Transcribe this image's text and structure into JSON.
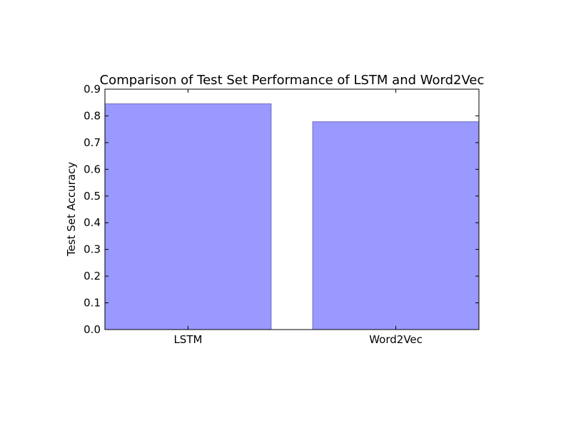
{
  "chart_data": {
    "type": "bar",
    "title": "Comparison of Test Set Performance of LSTM and Word2Vec",
    "xlabel": "",
    "ylabel": "Test Set Accuracy",
    "categories": [
      "LSTM",
      "Word2Vec"
    ],
    "values": [
      0.845,
      0.778
    ],
    "ylim": [
      0.0,
      0.9
    ],
    "yticks": [
      "0.0",
      "0.1",
      "0.2",
      "0.3",
      "0.4",
      "0.5",
      "0.6",
      "0.7",
      "0.8",
      "0.9"
    ],
    "grid": false,
    "legend": "none",
    "colors": {
      "bar_fill": "#9999ff",
      "bar_edge": "#6b6bbf",
      "axes": "#000000"
    }
  }
}
